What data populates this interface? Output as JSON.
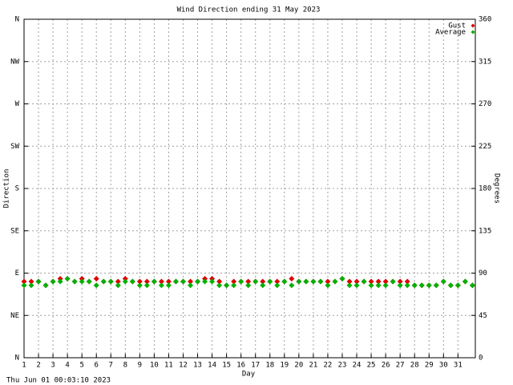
{
  "chart_data": {
    "type": "scatter",
    "title": "Wind Direction ending 31 May 2023",
    "xlabel": "Day",
    "ylabel": "Direction",
    "y2label": "Degrees",
    "footer": "Thu Jun 01 00:03:10 2023",
    "grid": true,
    "legend": "upper right",
    "xlim": [
      1,
      32.2
    ],
    "ylim": [
      0,
      360
    ],
    "y2lim": [
      0,
      360
    ],
    "xticks": [
      1,
      2,
      3,
      4,
      5,
      6,
      7,
      8,
      9,
      10,
      11,
      12,
      13,
      14,
      15,
      16,
      17,
      18,
      19,
      20,
      21,
      22,
      23,
      24,
      25,
      26,
      27,
      28,
      29,
      30,
      31
    ],
    "yticks": [
      {
        "value": 0,
        "label": "N"
      },
      {
        "value": 45,
        "label": "NE"
      },
      {
        "value": 90,
        "label": "E"
      },
      {
        "value": 135,
        "label": "SE"
      },
      {
        "value": 180,
        "label": "S"
      },
      {
        "value": 225,
        "label": "SW"
      },
      {
        "value": 270,
        "label": "W"
      },
      {
        "value": 315,
        "label": "NW"
      },
      {
        "value": 360,
        "label": "N"
      }
    ],
    "y2ticks": [
      0,
      45,
      90,
      135,
      180,
      225,
      270,
      315,
      360
    ],
    "x": [
      1,
      1.5,
      2,
      2.5,
      3,
      3.5,
      4,
      4.5,
      5,
      5.5,
      6,
      6.5,
      7,
      7.5,
      8,
      8.5,
      9,
      9.5,
      10,
      10.5,
      11,
      11.5,
      12,
      12.5,
      13,
      13.5,
      14,
      14.5,
      15,
      15.5,
      16,
      16.5,
      17,
      17.5,
      18,
      18.5,
      19,
      19.5,
      20,
      20.5,
      21,
      21.5,
      22,
      22.5,
      23,
      23.5,
      24,
      24.5,
      25,
      25.5,
      26,
      26.5,
      27,
      27.5,
      28,
      28.5,
      29,
      29.5,
      30,
      30.5,
      31,
      31.5,
      32
    ],
    "series": [
      {
        "name": "Gust",
        "color": "#e00000",
        "values": [
          81,
          81,
          81,
          77,
          81,
          84,
          84,
          81,
          84,
          81,
          84,
          81,
          81,
          81,
          84,
          81,
          81,
          81,
          81,
          81,
          81,
          81,
          81,
          81,
          81,
          84,
          84,
          81,
          77,
          81,
          81,
          81,
          81,
          81,
          81,
          81,
          81,
          84,
          81,
          81,
          81,
          81,
          81,
          81,
          84,
          81,
          81,
          81,
          81,
          81,
          81,
          81,
          81,
          81,
          77,
          77,
          77,
          77,
          81,
          77,
          77,
          81,
          77
        ]
      },
      {
        "name": "Average",
        "color": "#00b000",
        "values": [
          77,
          77,
          81,
          77,
          81,
          81,
          84,
          81,
          81,
          81,
          77,
          81,
          81,
          77,
          81,
          81,
          77,
          77,
          81,
          77,
          77,
          81,
          81,
          77,
          81,
          81,
          81,
          77,
          77,
          77,
          81,
          77,
          81,
          77,
          81,
          77,
          81,
          77,
          81,
          81,
          81,
          81,
          77,
          81,
          84,
          77,
          77,
          81,
          77,
          77,
          77,
          81,
          77,
          77,
          77,
          77,
          77,
          77,
          81,
          77,
          77,
          81,
          77
        ]
      }
    ]
  }
}
